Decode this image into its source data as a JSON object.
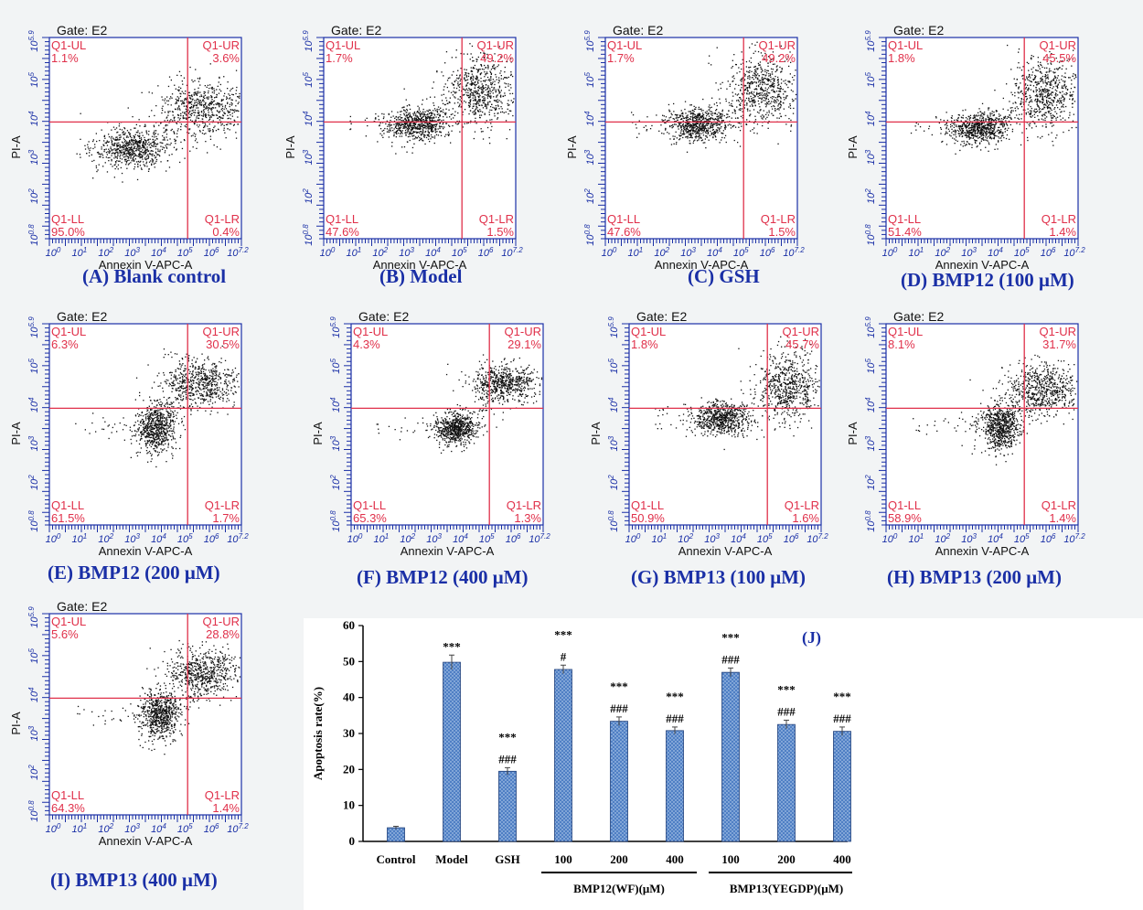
{
  "flow_panels": [
    {
      "id": "A",
      "gate": "Gate: E2",
      "caption": "(A) Blank control",
      "ul": "1.1%",
      "ur": "3.6%",
      "ll": "95.0%",
      "lr": "0.4%",
      "xlabel": "Annexin V-APC-A",
      "ylabel": "PI-A",
      "qlabels": [
        "Q1-UL",
        "Q1-UR",
        "Q1-LL",
        "Q1-LR"
      ],
      "xticks": [
        "10^0",
        "10^1",
        "10^2",
        "10^3",
        "10^4",
        "10^5",
        "10^6",
        "10^7.2"
      ],
      "yticks": [
        "10^0.8",
        "10^2",
        "10^3",
        "10^4",
        "10^5",
        "10^5.9"
      ]
    },
    {
      "id": "B",
      "gate": "Gate: E2",
      "caption": "(B) Model",
      "ul": "1.7%",
      "ur": "49.2%",
      "ll": "47.6%",
      "lr": "1.5%",
      "xlabel": "Annexin V-APC-A",
      "ylabel": "PI-A",
      "qlabels": [
        "Q1-UL",
        "Q1-UR",
        "Q1-LL",
        "Q1-LR"
      ],
      "xticks": [
        "10^0",
        "10^1",
        "10^2",
        "10^3",
        "10^4",
        "10^5",
        "10^6",
        "10^7.2"
      ],
      "yticks": [
        "10^0.8",
        "10^2",
        "10^3",
        "10^4",
        "10^5",
        "10^5.9"
      ]
    },
    {
      "id": "C",
      "gate": "Gate: E2",
      "caption": "(C) GSH",
      "ul": "1.7%",
      "ur": "49.2%",
      "ll": "47.6%",
      "lr": "1.5%",
      "xlabel": "Annexin V-APC-A",
      "ylabel": "PI-A",
      "qlabels": [
        "Q1-UL",
        "Q1-UR",
        "Q1-LL",
        "Q1-LR"
      ],
      "xticks": [
        "10^0",
        "10^1",
        "10^2",
        "10^3",
        "10^4",
        "10^5",
        "10^6",
        "10^7.2"
      ],
      "yticks": [
        "10^0.8",
        "10^2",
        "10^3",
        "10^4",
        "10^5",
        "10^5.9"
      ]
    },
    {
      "id": "D",
      "gate": "Gate: E2",
      "caption": "(D) BMP12 (100 μM)",
      "ul": "1.8%",
      "ur": "45.5%",
      "ll": "51.4%",
      "lr": "1.4%",
      "xlabel": "Annexin V-APC-A",
      "ylabel": "PI-A",
      "qlabels": [
        "Q1-UL",
        "Q1-UR",
        "Q1-LL",
        "Q1-LR"
      ],
      "xticks": [
        "10^0",
        "10^1",
        "10^2",
        "10^3",
        "10^4",
        "10^5",
        "10^6",
        "10^7.2"
      ],
      "yticks": [
        "10^0.8",
        "10^2",
        "10^3",
        "10^4",
        "10^5",
        "10^5.9"
      ]
    },
    {
      "id": "E",
      "gate": "Gate: E2",
      "caption": "(E) BMP12 (200 μM)",
      "ul": "6.3%",
      "ur": "30.5%",
      "ll": "61.5%",
      "lr": "1.7%",
      "xlabel": "Annexin V-APC-A",
      "ylabel": "PI-A",
      "qlabels": [
        "Q1-UL",
        "Q1-UR",
        "Q1-LL",
        "Q1-LR"
      ],
      "xticks": [
        "10^0",
        "10^1",
        "10^2",
        "10^3",
        "10^4",
        "10^5",
        "10^6",
        "10^7.2"
      ],
      "yticks": [
        "10^0.8",
        "10^2",
        "10^3",
        "10^4",
        "10^5",
        "10^5.9"
      ]
    },
    {
      "id": "F",
      "gate": "Gate: E2",
      "caption": "(F) BMP12 (400 μM)",
      "ul": "4.3%",
      "ur": "29.1%",
      "ll": "65.3%",
      "lr": "1.3%",
      "xlabel": "Annexin V-APC-A",
      "ylabel": "PI-A",
      "qlabels": [
        "Q1-UL",
        "Q1-UR",
        "Q1-LL",
        "Q1-LR"
      ],
      "xticks": [
        "10^0",
        "10^1",
        "10^2",
        "10^3",
        "10^4",
        "10^5",
        "10^6",
        "10^7.2"
      ],
      "yticks": [
        "10^0.8",
        "10^2",
        "10^3",
        "10^4",
        "10^5",
        "10^5.9"
      ]
    },
    {
      "id": "G",
      "gate": "Gate: E2",
      "caption": "(G) BMP13 (100 μM)",
      "ul": "1.8%",
      "ur": "45.7%",
      "ll": "50.9%",
      "lr": "1.6%",
      "xlabel": "Annexin V-APC-A",
      "ylabel": "PI-A",
      "qlabels": [
        "Q1-UL",
        "Q1-UR",
        "Q1-LL",
        "Q1-LR"
      ],
      "xticks": [
        "10^0",
        "10^1",
        "10^2",
        "10^3",
        "10^4",
        "10^5",
        "10^6",
        "10^7.2"
      ],
      "yticks": [
        "10^0.8",
        "10^2",
        "10^3",
        "10^4",
        "10^5",
        "10^5.9"
      ]
    },
    {
      "id": "H",
      "gate": "Gate: E2",
      "caption": "(H) BMP13 (200 μM)",
      "ul": "8.1%",
      "ur": "31.7%",
      "ll": "58.9%",
      "lr": "1.4%",
      "xlabel": "Annexin V-APC-A",
      "ylabel": "PI-A",
      "qlabels": [
        "Q1-UL",
        "Q1-UR",
        "Q1-LL",
        "Q1-LR"
      ],
      "xticks": [
        "10^0",
        "10^1",
        "10^2",
        "10^3",
        "10^4",
        "10^5",
        "10^6",
        "10^7.2"
      ],
      "yticks": [
        "10^0.8",
        "10^2",
        "10^3",
        "10^4",
        "10^5",
        "10^5.9"
      ]
    },
    {
      "id": "I",
      "gate": "Gate: E2",
      "caption": "(I) BMP13 (400 μM)",
      "ul": "5.6%",
      "ur": "28.8%",
      "ll": "64.3%",
      "lr": "1.4%",
      "xlabel": "Annexin V-APC-A",
      "ylabel": "PI-A",
      "qlabels": [
        "Q1-UL",
        "Q1-UR",
        "Q1-LL",
        "Q1-LR"
      ],
      "xticks": [
        "10^0",
        "10^1",
        "10^2",
        "10^3",
        "10^4",
        "10^5",
        "10^6",
        "10^7.2"
      ],
      "yticks": [
        "10^0.8",
        "10^2",
        "10^3",
        "10^4",
        "10^5",
        "10^5.9"
      ]
    }
  ],
  "colors": {
    "axis": "#1a2fa6",
    "quadrant": "#e0304a",
    "dots": "#111111",
    "caption": "#1a2fa6",
    "bar_fill": "#4f7fc4",
    "bar_stroke": "#1f3f7a"
  },
  "chart_data": {
    "type": "bar",
    "panel_label": "(J)",
    "ylabel": "Apoptosis rate(%)",
    "ylim": [
      0,
      60
    ],
    "yticks": [
      0,
      10,
      20,
      30,
      40,
      50,
      60
    ],
    "categories": [
      "Control",
      "Model",
      "GSH",
      "100",
      "200",
      "400",
      "100",
      "200",
      "400"
    ],
    "values": [
      3.8,
      49.8,
      19.5,
      47.8,
      33.4,
      30.8,
      47.0,
      32.5,
      30.6
    ],
    "errors": [
      0.4,
      2.0,
      1.0,
      1.2,
      1.2,
      1.0,
      1.2,
      1.2,
      1.2
    ],
    "sig_star": [
      "",
      "***",
      "***",
      "***",
      "***",
      "***",
      "***",
      "***",
      "***"
    ],
    "sig_hash": [
      "",
      "",
      "###",
      "#",
      "###",
      "###",
      "###",
      "###",
      "###"
    ],
    "groups": [
      {
        "label": "BMP12(WF)(μM)",
        "members": [
          3,
          4,
          5
        ]
      },
      {
        "label": "BMP13(YEGDP)(μM)",
        "members": [
          6,
          7,
          8
        ]
      }
    ]
  }
}
